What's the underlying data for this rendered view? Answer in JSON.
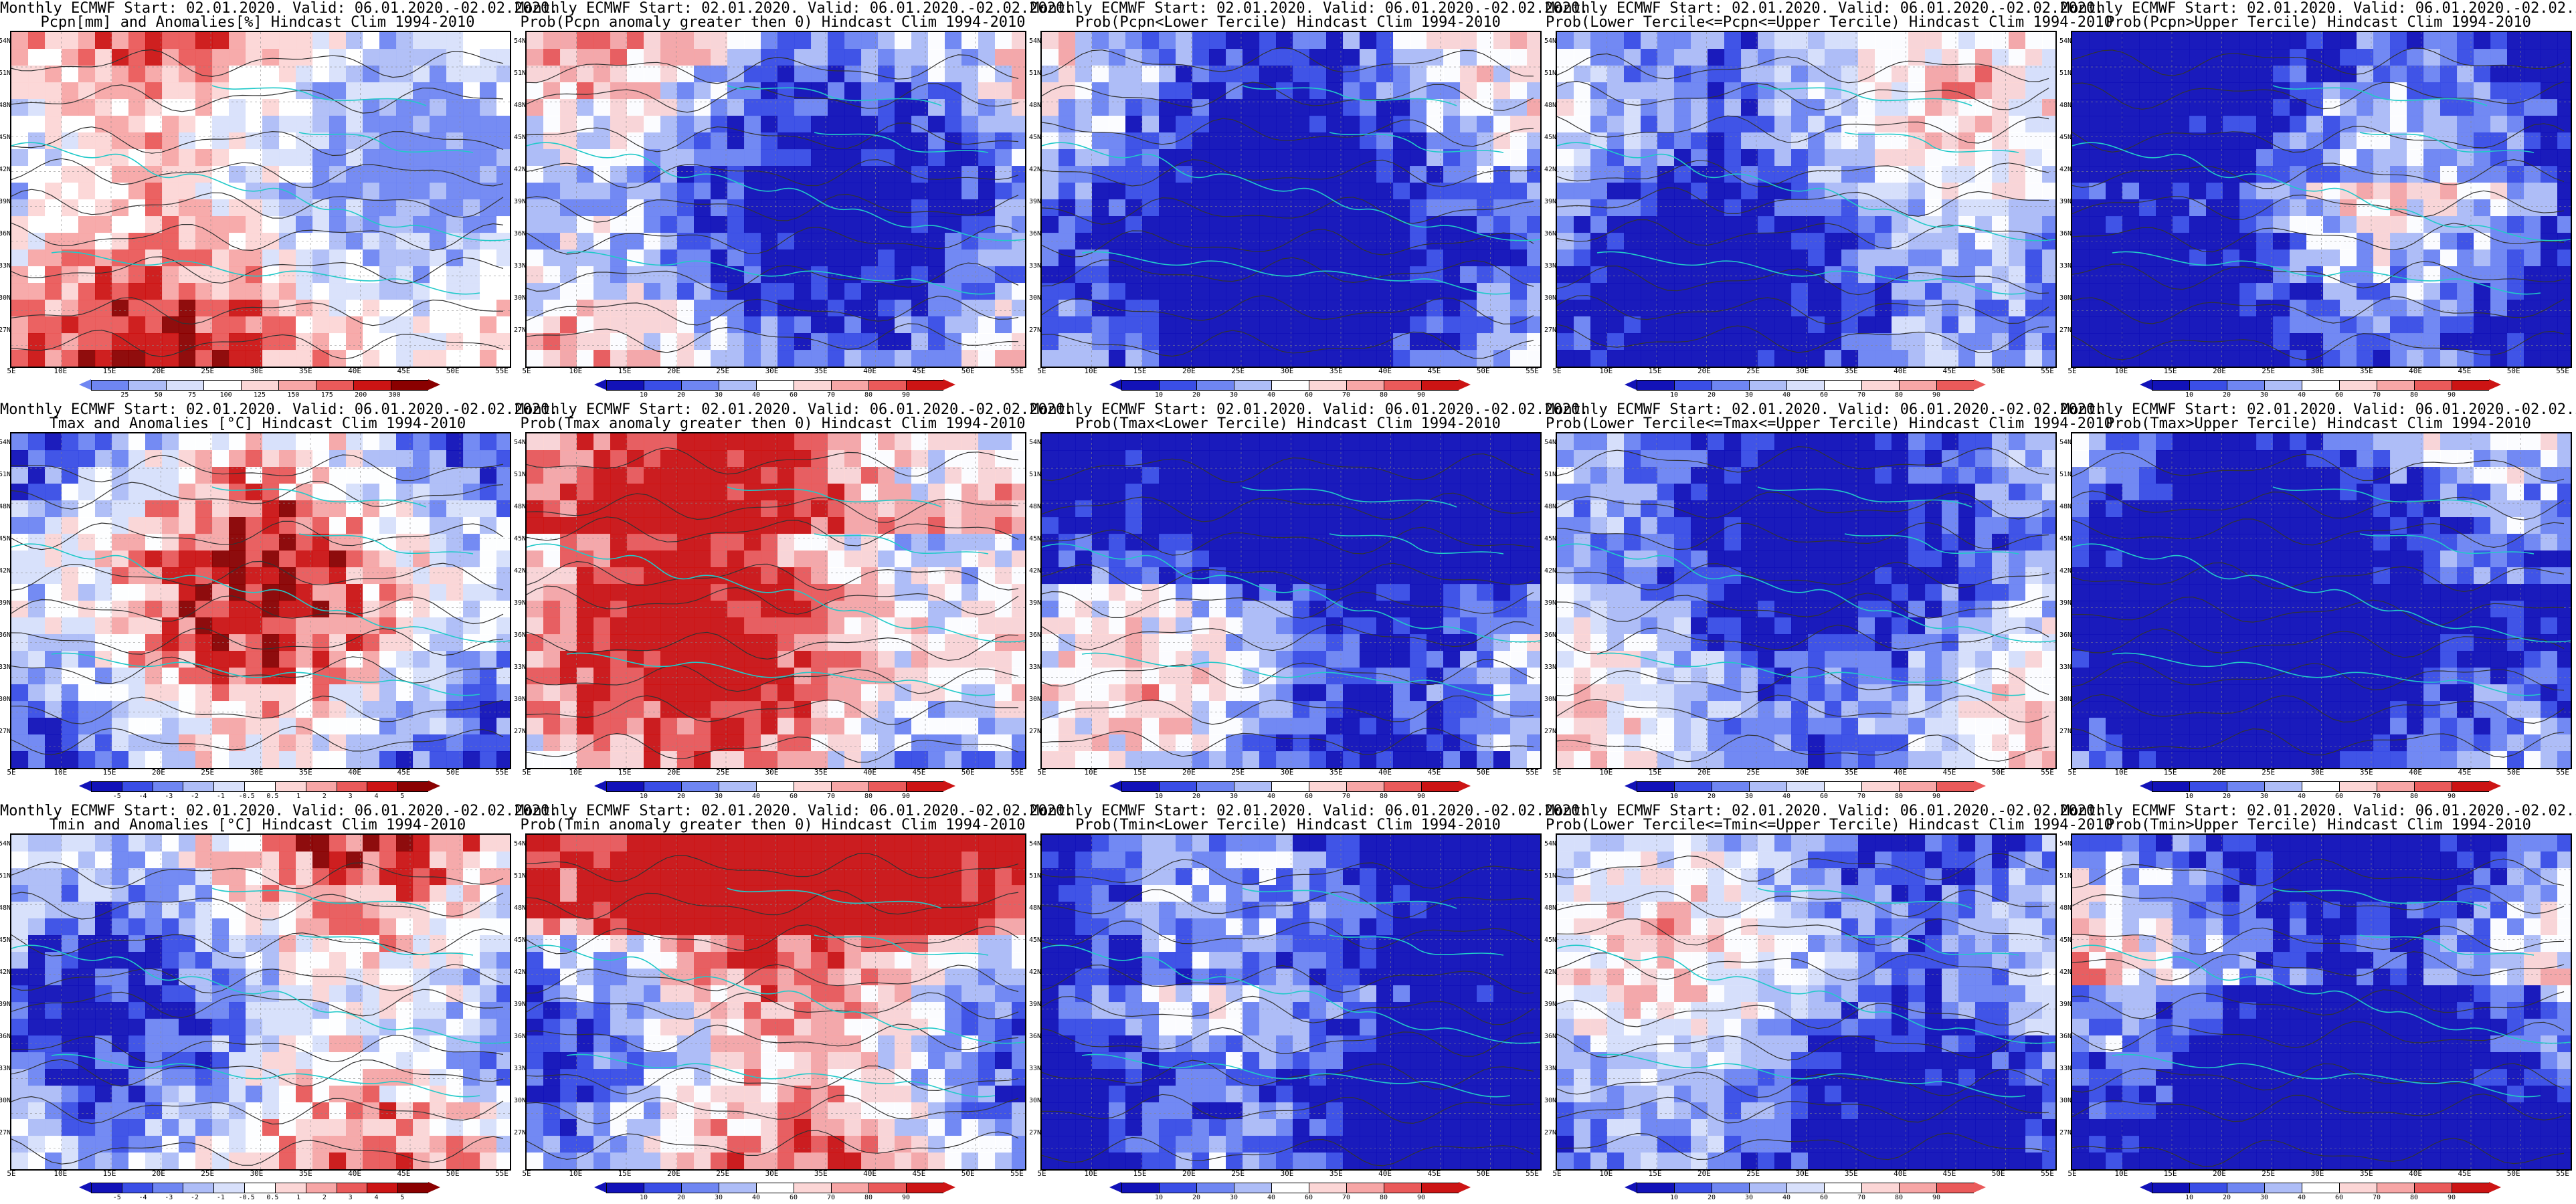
{
  "title_line1": "Monthly ECMWF Start: 02.01.2020. Valid: 06.01.2020.-02.02.2020.",
  "panels": [
    {
      "row": 0,
      "col": 0,
      "subtitle": "Pcpn[mm] and Anomalies[%] Hindcast Clim 1994-2010",
      "scheme": "pcpn_anom",
      "cbar_ticks": [
        "25",
        "50",
        "75",
        "100",
        "125",
        "150",
        "175",
        "200",
        "300"
      ]
    },
    {
      "row": 0,
      "col": 1,
      "subtitle": "Prob(Pcpn anomaly greater then 0) Hindcast Clim 1994-2010",
      "scheme": "prob_warm",
      "cbar_ticks": [
        "10",
        "20",
        "30",
        "40",
        "60",
        "70",
        "80",
        "90"
      ]
    },
    {
      "row": 0,
      "col": 2,
      "subtitle": "Prob(Pcpn<Lower Tercile) Hindcast Clim 1994-2010",
      "scheme": "prob_cold",
      "cbar_ticks": [
        "10",
        "20",
        "30",
        "40",
        "60",
        "70",
        "80",
        "90"
      ]
    },
    {
      "row": 0,
      "col": 3,
      "subtitle": "Prob(Lower Tercile<=Pcpn<=Upper Tercile) Hindcast Clim 1994-2010",
      "scheme": "prob_mixed",
      "cbar_ticks": [
        "10",
        "20",
        "30",
        "40",
        "60",
        "70",
        "80",
        "90"
      ]
    },
    {
      "row": 0,
      "col": 4,
      "subtitle": "Prob(Pcpn>Upper Tercile) Hindcast Clim 1994-2010",
      "scheme": "prob_cold_n",
      "cbar_ticks": [
        "10",
        "20",
        "30",
        "40",
        "60",
        "70",
        "80",
        "90"
      ]
    },
    {
      "row": 1,
      "col": 0,
      "subtitle": "Tmax and Anomalies [°C] Hindcast Clim 1994-2010",
      "scheme": "t_anom",
      "cbar_ticks": [
        "-5",
        "-4",
        "-3",
        "-2",
        "-1",
        "-0.5",
        "0.5",
        "1",
        "2",
        "3",
        "4",
        "5"
      ]
    },
    {
      "row": 1,
      "col": 1,
      "subtitle": "Prob(Tmax anomaly greater then 0) Hindcast Clim 1994-2010",
      "scheme": "prob_warm_n",
      "cbar_ticks": [
        "10",
        "20",
        "30",
        "40",
        "60",
        "70",
        "80",
        "90"
      ]
    },
    {
      "row": 1,
      "col": 2,
      "subtitle": "Prob(Tmax<Lower Tercile) Hindcast Clim 1994-2010",
      "scheme": "prob_cold_n",
      "cbar_ticks": [
        "10",
        "20",
        "30",
        "40",
        "60",
        "70",
        "80",
        "90"
      ]
    },
    {
      "row": 1,
      "col": 3,
      "subtitle": "Prob(Lower Tercile<=Tmax<=Upper Tercile) Hindcast Clim 1994-2010",
      "scheme": "prob_mixed",
      "cbar_ticks": [
        "10",
        "20",
        "30",
        "40",
        "60",
        "70",
        "80",
        "90"
      ]
    },
    {
      "row": 1,
      "col": 4,
      "subtitle": "Prob(Tmax>Upper Tercile) Hindcast Clim 1994-2010",
      "scheme": "prob_cold_s",
      "cbar_ticks": [
        "10",
        "20",
        "30",
        "40",
        "60",
        "70",
        "80",
        "90"
      ]
    },
    {
      "row": 2,
      "col": 0,
      "subtitle": "Tmin and Anomalies [°C] Hindcast Clim 1994-2010",
      "scheme": "t_anom2",
      "cbar_ticks": [
        "-5",
        "-4",
        "-3",
        "-2",
        "-1",
        "-0.5",
        "0.5",
        "1",
        "2",
        "3",
        "4",
        "5"
      ]
    },
    {
      "row": 2,
      "col": 1,
      "subtitle": "Prob(Tmin anomaly greater then 0) Hindcast Clim 1994-2010",
      "scheme": "prob_warm_n",
      "cbar_ticks": [
        "10",
        "20",
        "30",
        "40",
        "60",
        "70",
        "80",
        "90"
      ]
    },
    {
      "row": 2,
      "col": 2,
      "subtitle": "Prob(Tmin<Lower Tercile) Hindcast Clim 1994-2010",
      "scheme": "prob_cold_n",
      "cbar_ticks": [
        "10",
        "20",
        "30",
        "40",
        "60",
        "70",
        "80",
        "90"
      ]
    },
    {
      "row": 2,
      "col": 3,
      "subtitle": "Prob(Lower Tercile<=Tmin<=Upper Tercile) Hindcast Clim 1994-2010",
      "scheme": "prob_mixed",
      "cbar_ticks": [
        "10",
        "20",
        "30",
        "40",
        "60",
        "70",
        "80",
        "90"
      ]
    },
    {
      "row": 2,
      "col": 4,
      "subtitle": "Prob(Tmin>Upper Tercile) Hindcast Clim 1994-2010",
      "scheme": "prob_cold_s",
      "cbar_ticks": [
        "10",
        "20",
        "30",
        "40",
        "60",
        "70",
        "80",
        "90"
      ]
    }
  ],
  "lat_labels": [
    "54N",
    "51N",
    "48N",
    "45N",
    "42N",
    "39N",
    "36N",
    "33N",
    "30N",
    "27N"
  ],
  "lon_labels": [
    "5E",
    "10E",
    "15E",
    "20E",
    "25E",
    "30E",
    "35E",
    "40E",
    "45E",
    "50E",
    "55E"
  ],
  "colors": {
    "blue_dark": "#1212b8",
    "blue": "#3a4ee6",
    "blue_mid": "#6f86f2",
    "blue_light": "#aebdf7",
    "blue_pale": "#d8e0fb",
    "white": "#ffffff",
    "red_pale": "#fcd6d6",
    "red_light": "#f7a6a6",
    "red": "#ea5a5a",
    "red_dark": "#cc1414",
    "red_deep": "#8a0000",
    "coast": "#22c9c9",
    "contour": "#333333"
  }
}
